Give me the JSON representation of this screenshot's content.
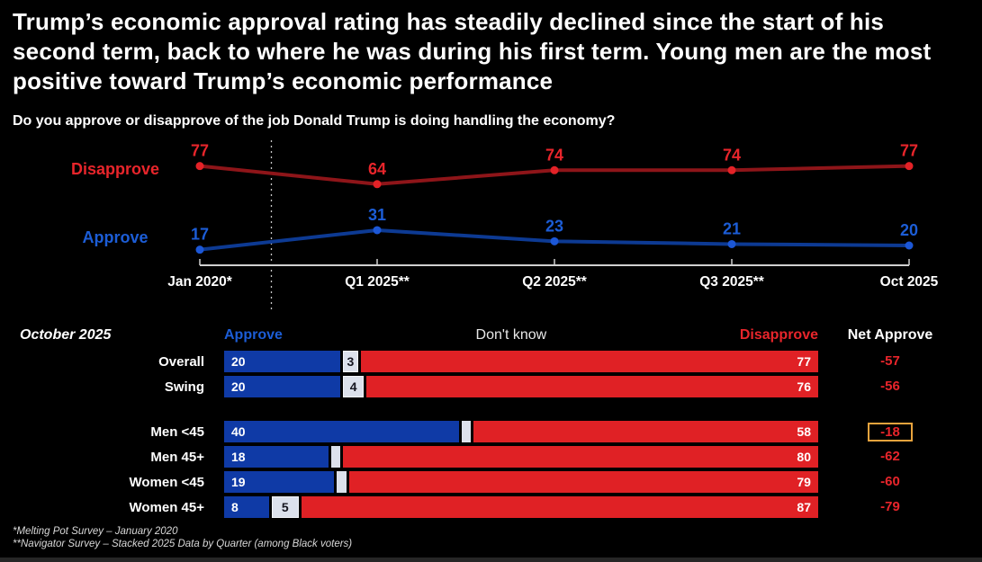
{
  "title": "Trump’s economic approval rating has steadily declined since the start of his second term, back to where he was during his first term. Young men are the most positive toward Trump’s economic performance",
  "subtitle": "Do you approve or disapprove of the job Donald Trump is doing handling the economy?",
  "colors": {
    "background": "#000000",
    "approve_blue": "#0f3aa6",
    "approve_label_blue": "#1c5dd6",
    "approve_line_blue": "#0d3a93",
    "disapprove_red": "#e02125",
    "disapprove_label_red": "#e8252b",
    "disapprove_line_red": "#8e1519",
    "dont_know_gray": "#dce1ec",
    "axis_gray": "#d0d0d0",
    "net_highlight_gold": "#e8a33d"
  },
  "chart_data": [
    {
      "type": "line",
      "categories": [
        "Jan 2020*",
        "Q1 2025**",
        "Q2 2025**",
        "Q3 2025**",
        "Oct 2025"
      ],
      "series": [
        {
          "name": "Disapprove",
          "values": [
            77,
            64,
            74,
            74,
            77
          ],
          "line_color": "#8e1519",
          "marker_color": "#e32227",
          "label_color": "#e8252b"
        },
        {
          "name": "Approve",
          "values": [
            17,
            31,
            23,
            21,
            20
          ],
          "line_color": "#0d3a93",
          "marker_color": "#1c57d6",
          "label_color": "#1c5dd6"
        }
      ],
      "ylim": [
        0,
        100
      ],
      "grid": false,
      "legend_position": "left-of-lines",
      "dashed_divider_after_category_index": 0,
      "xlabel": "",
      "ylabel": ""
    },
    {
      "type": "bar",
      "orientation": "horizontal-stacked",
      "title": "October 2025",
      "columns": [
        "Approve",
        "Don't know",
        "Disapprove",
        "Net Approve"
      ],
      "groups": [
        {
          "rows": [
            {
              "label": "Overall",
              "approve": 20,
              "dont_know": 3,
              "show_dont_know_label": true,
              "disapprove": 77,
              "net": "-57",
              "net_highlight": false
            },
            {
              "label": "Swing",
              "approve": 20,
              "dont_know": 4,
              "show_dont_know_label": true,
              "disapprove": 76,
              "net": "-56",
              "net_highlight": false
            }
          ]
        },
        {
          "rows": [
            {
              "label": "Men <45",
              "approve": 40,
              "dont_know": 2,
              "show_dont_know_label": false,
              "disapprove": 58,
              "net": "-18",
              "net_highlight": true
            },
            {
              "label": "Men 45+",
              "approve": 18,
              "dont_know": 2,
              "show_dont_know_label": false,
              "disapprove": 80,
              "net": "-62",
              "net_highlight": false
            },
            {
              "label": "Women <45",
              "approve": 19,
              "dont_know": 2,
              "show_dont_know_label": false,
              "disapprove": 79,
              "net": "-60",
              "net_highlight": false
            },
            {
              "label": "Women 45+",
              "approve": 8,
              "dont_know": 5,
              "show_dont_know_label": true,
              "disapprove": 87,
              "net": "-79",
              "net_highlight": false
            }
          ]
        }
      ]
    }
  ],
  "footnotes": [
    "*Melting Pot Survey – January 2020",
    "**Navigator Survey – Stacked 2025 Data by Quarter (among Black voters)"
  ]
}
